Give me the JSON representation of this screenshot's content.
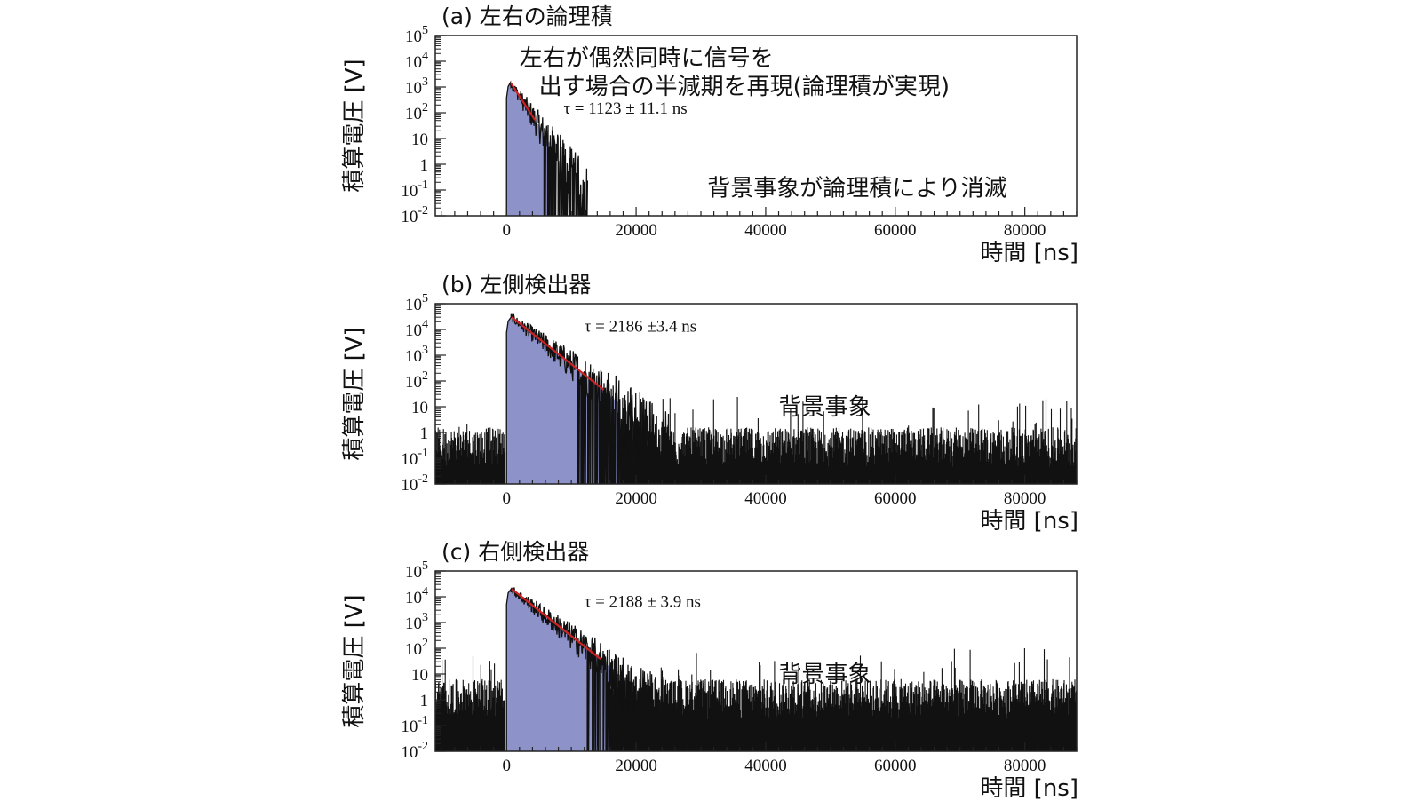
{
  "chart_data": [
    {
      "type": "area",
      "panel_label": "(a) 左右の論理積",
      "ylabel": "積算電圧 [V]",
      "xlabel": "時間 [ns]",
      "yscale": "log",
      "xlim": [
        -11000,
        88000
      ],
      "ylim": [
        0.01,
        100000
      ],
      "x_ticks": [
        {
          "value": 0,
          "label": "0"
        },
        {
          "value": 20000,
          "label": "20000"
        },
        {
          "value": 40000,
          "label": "40000"
        },
        {
          "value": 60000,
          "label": "60000"
        },
        {
          "value": 80000,
          "label": "80000"
        }
      ],
      "y_ticks": [
        {
          "value": 100000,
          "base": "10",
          "exp": "5"
        },
        {
          "value": 10000,
          "base": "10",
          "exp": "4"
        },
        {
          "value": 1000,
          "base": "10",
          "exp": "3"
        },
        {
          "value": 100,
          "base": "10",
          "exp": "2"
        },
        {
          "value": 10,
          "base": "10",
          "exp": ""
        },
        {
          "value": 1,
          "base": "1",
          "exp": ""
        },
        {
          "value": 0.1,
          "base": "10",
          "exp": "-1"
        },
        {
          "value": 0.01,
          "base": "10",
          "exp": "-2"
        }
      ],
      "series": [
        {
          "kind": "histogram",
          "fill": "#8d92c8",
          "peak_x": 600,
          "peak_y": 1500,
          "tau": 1123,
          "rise_start": 0,
          "fill_until": 7500,
          "signal_until": 12500,
          "background": {
            "from": null,
            "to": null,
            "level": 0
          }
        },
        {
          "kind": "fit",
          "color": "#cc2222",
          "x_start": 700,
          "x_end": 4400,
          "tau": 1123,
          "y_start": 1400
        }
      ],
      "fit_label": {
        "text": "τ = 1123 ± 11.1 ns",
        "x": 8800,
        "y": 150
      },
      "annotations": [
        {
          "text": "左右が偶然同時に信号を",
          "x": 2000,
          "y": 14000
        },
        {
          "text": "出す場合の半減期を再現(論理積が実現)",
          "x": 5000,
          "y": 1100
        },
        {
          "text": "背景事象が論理積により消滅",
          "x": 31000,
          "y": 0.12
        }
      ]
    },
    {
      "type": "area",
      "panel_label": "(b) 左側検出器",
      "ylabel": "積算電圧 [V]",
      "xlabel": "時間 [ns]",
      "yscale": "log",
      "xlim": [
        -11000,
        88000
      ],
      "ylim": [
        0.01,
        100000
      ],
      "x_ticks": [
        {
          "value": 0,
          "label": "0"
        },
        {
          "value": 20000,
          "label": "20000"
        },
        {
          "value": 40000,
          "label": "40000"
        },
        {
          "value": 60000,
          "label": "60000"
        },
        {
          "value": 80000,
          "label": "80000"
        }
      ],
      "y_ticks": [
        {
          "value": 100000,
          "base": "10",
          "exp": "5"
        },
        {
          "value": 10000,
          "base": "10",
          "exp": "4"
        },
        {
          "value": 1000,
          "base": "10",
          "exp": "3"
        },
        {
          "value": 100,
          "base": "10",
          "exp": "2"
        },
        {
          "value": 10,
          "base": "10",
          "exp": ""
        },
        {
          "value": 1,
          "base": "1",
          "exp": ""
        },
        {
          "value": 0.1,
          "base": "10",
          "exp": "-1"
        },
        {
          "value": 0.01,
          "base": "10",
          "exp": "-2"
        }
      ],
      "series": [
        {
          "kind": "histogram",
          "fill": "#8d92c8",
          "peak_x": 700,
          "peak_y": 30000,
          "tau": 2186,
          "rise_start": 0,
          "fill_until": 17500,
          "signal_until": 26000,
          "background": {
            "from": -11000,
            "to": 88000,
            "level": 0.3
          }
        },
        {
          "kind": "fit",
          "color": "#cc2222",
          "x_start": 800,
          "x_end": 15000,
          "tau": 2186,
          "y_start": 30000
        }
      ],
      "fit_label": {
        "text": "τ = 2186 ±3.4 ns",
        "x": 12000,
        "y": 13000
      },
      "annotations": [
        {
          "text": "背景事象",
          "x": 42000,
          "y": 10
        }
      ]
    },
    {
      "type": "area",
      "panel_label": "(c) 右側検出器",
      "ylabel": "積算電圧 [V]",
      "xlabel": "時間 [ns]",
      "yscale": "log",
      "xlim": [
        -11000,
        88000
      ],
      "ylim": [
        0.01,
        100000
      ],
      "x_ticks": [
        {
          "value": 0,
          "label": "0"
        },
        {
          "value": 20000,
          "label": "20000"
        },
        {
          "value": 40000,
          "label": "40000"
        },
        {
          "value": 60000,
          "label": "60000"
        },
        {
          "value": 80000,
          "label": "80000"
        }
      ],
      "y_ticks": [
        {
          "value": 100000,
          "base": "10",
          "exp": "5"
        },
        {
          "value": 10000,
          "base": "10",
          "exp": "4"
        },
        {
          "value": 1000,
          "base": "10",
          "exp": "3"
        },
        {
          "value": 100,
          "base": "10",
          "exp": "2"
        },
        {
          "value": 10,
          "base": "10",
          "exp": ""
        },
        {
          "value": 1,
          "base": "1",
          "exp": ""
        },
        {
          "value": 0.1,
          "base": "10",
          "exp": "-1"
        },
        {
          "value": 0.01,
          "base": "10",
          "exp": "-2"
        }
      ],
      "series": [
        {
          "kind": "histogram",
          "fill": "#8d92c8",
          "peak_x": 700,
          "peak_y": 20000,
          "tau": 2188,
          "rise_start": 0,
          "fill_until": 16000,
          "signal_until": 30000,
          "background": {
            "from": -11000,
            "to": 88000,
            "level": 1.2
          }
        },
        {
          "kind": "fit",
          "color": "#cc2222",
          "x_start": 800,
          "x_end": 14500,
          "tau": 2188,
          "y_start": 20000
        }
      ],
      "fit_label": {
        "text": "τ = 2188 ± 3.9 ns",
        "x": 12000,
        "y": 6500
      },
      "annotations": [
        {
          "text": "背景事象",
          "x": 42000,
          "y": 10
        }
      ]
    }
  ],
  "colors": {
    "axes": "#222222",
    "fill": "#8d92c8",
    "fit": "#cc2222",
    "noise": "#111111"
  }
}
